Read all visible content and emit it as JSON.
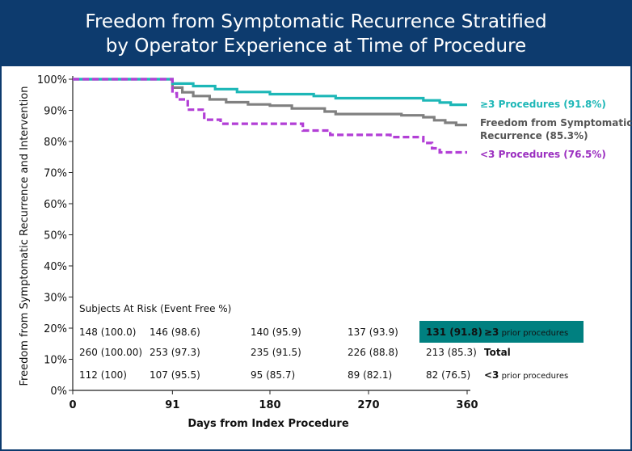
{
  "title_lines": [
    "Freedom from Symptomatic Recurrence Stratified",
    "by Operator Experience at Time of Procedure"
  ],
  "colors": {
    "title_bg": "#0d3b6e",
    "teal": "#1db7b7",
    "gray": "#808080",
    "purple": "#b23fd6",
    "highlight_bg": "#008080"
  },
  "chart_data": {
    "type": "line",
    "xlabel": "Days from Index Procedure",
    "ylabel": "Freedom from Symptomatic Recurrence and Intervention",
    "xlim": [
      0,
      360
    ],
    "ylim": [
      0,
      100
    ],
    "x_ticks": [
      "0",
      "91",
      "180",
      "270",
      "360"
    ],
    "y_ticks": [
      "0%",
      "10%",
      "20%",
      "30%",
      "40%",
      "50%",
      "60%",
      "70%",
      "80%",
      "90%",
      "100%"
    ],
    "series": [
      {
        "name": "≥3 Procedures (91.8%)",
        "color": "#1db7b7",
        "dashed": false,
        "points": [
          [
            0,
            100
          ],
          [
            91,
            100
          ],
          [
            91,
            98.6
          ],
          [
            110,
            98.6
          ],
          [
            110,
            97.8
          ],
          [
            130,
            97.8
          ],
          [
            130,
            96.8
          ],
          [
            150,
            96.8
          ],
          [
            150,
            95.9
          ],
          [
            180,
            95.9
          ],
          [
            180,
            95.2
          ],
          [
            220,
            95.2
          ],
          [
            220,
            94.6
          ],
          [
            240,
            94.6
          ],
          [
            240,
            93.9
          ],
          [
            320,
            93.9
          ],
          [
            320,
            93.2
          ],
          [
            335,
            93.2
          ],
          [
            335,
            92.5
          ],
          [
            345,
            92.5
          ],
          [
            345,
            91.8
          ],
          [
            360,
            91.8
          ]
        ]
      },
      {
        "name": "Freedom from Symptomatic Recurrence (85.3%)",
        "color": "#808080",
        "dashed": false,
        "points": [
          [
            0,
            100
          ],
          [
            91,
            100
          ],
          [
            91,
            97.3
          ],
          [
            100,
            97.3
          ],
          [
            100,
            95.8
          ],
          [
            110,
            95.8
          ],
          [
            110,
            94.6
          ],
          [
            125,
            94.6
          ],
          [
            125,
            93.5
          ],
          [
            140,
            93.5
          ],
          [
            140,
            92.6
          ],
          [
            160,
            92.6
          ],
          [
            160,
            91.9
          ],
          [
            180,
            91.9
          ],
          [
            180,
            91.5
          ],
          [
            200,
            91.5
          ],
          [
            200,
            90.6
          ],
          [
            230,
            90.6
          ],
          [
            230,
            89.6
          ],
          [
            240,
            89.6
          ],
          [
            240,
            88.8
          ],
          [
            300,
            88.8
          ],
          [
            300,
            88.4
          ],
          [
            320,
            88.4
          ],
          [
            320,
            87.8
          ],
          [
            330,
            87.8
          ],
          [
            330,
            86.8
          ],
          [
            340,
            86.8
          ],
          [
            340,
            86.0
          ],
          [
            350,
            86.0
          ],
          [
            350,
            85.3
          ],
          [
            360,
            85.3
          ]
        ]
      },
      {
        "name": "<3 Procedures (76.5%)",
        "color": "#b23fd6",
        "dashed": true,
        "points": [
          [
            0,
            100
          ],
          [
            91,
            100
          ],
          [
            91,
            95.5
          ],
          [
            95,
            95.5
          ],
          [
            95,
            93.5
          ],
          [
            105,
            93.5
          ],
          [
            105,
            90.2
          ],
          [
            120,
            90.2
          ],
          [
            120,
            87.0
          ],
          [
            135,
            87.0
          ],
          [
            135,
            85.7
          ],
          [
            210,
            85.7
          ],
          [
            210,
            83.5
          ],
          [
            235,
            83.5
          ],
          [
            235,
            82.1
          ],
          [
            290,
            82.1
          ],
          [
            290,
            81.4
          ],
          [
            320,
            81.4
          ],
          [
            320,
            79.5
          ],
          [
            328,
            79.5
          ],
          [
            328,
            77.8
          ],
          [
            335,
            77.8
          ],
          [
            335,
            76.5
          ],
          [
            360,
            76.5
          ]
        ]
      }
    ]
  },
  "risk_table": {
    "heading": "Subjects At Risk (Event Free %)",
    "rows": [
      {
        "values": [
          "148 (100.0)",
          "146 (98.6)",
          "140 (95.9)",
          "137 (93.9)",
          "131 (91.8)"
        ],
        "label_main": "≥3",
        "label_suffix": " prior procedures",
        "highlighted": true
      },
      {
        "values": [
          "260 (100.00)",
          "253 (97.3)",
          "235 (91.5)",
          "226 (88.8)",
          "213 (85.3)"
        ],
        "label_main": "Total",
        "label_suffix": "",
        "highlighted": false
      },
      {
        "values": [
          "112 (100)",
          "107 (95.5)",
          "95 (85.7)",
          "89 (82.1)",
          "82 (76.5)"
        ],
        "label_main": "<3",
        "label_suffix": " prior procedures",
        "highlighted": false
      }
    ]
  },
  "series_labels": [
    {
      "lines": [
        "≥3 Procedures (91.8%)"
      ],
      "color": "#1db7b7"
    },
    {
      "lines": [
        "Freedom from Symptomatic",
        "Recurrence (85.3%)"
      ],
      "color": "#555555"
    },
    {
      "lines": [
        "<3 Procedures (76.5%)"
      ],
      "color": "#9b2fc0"
    }
  ]
}
